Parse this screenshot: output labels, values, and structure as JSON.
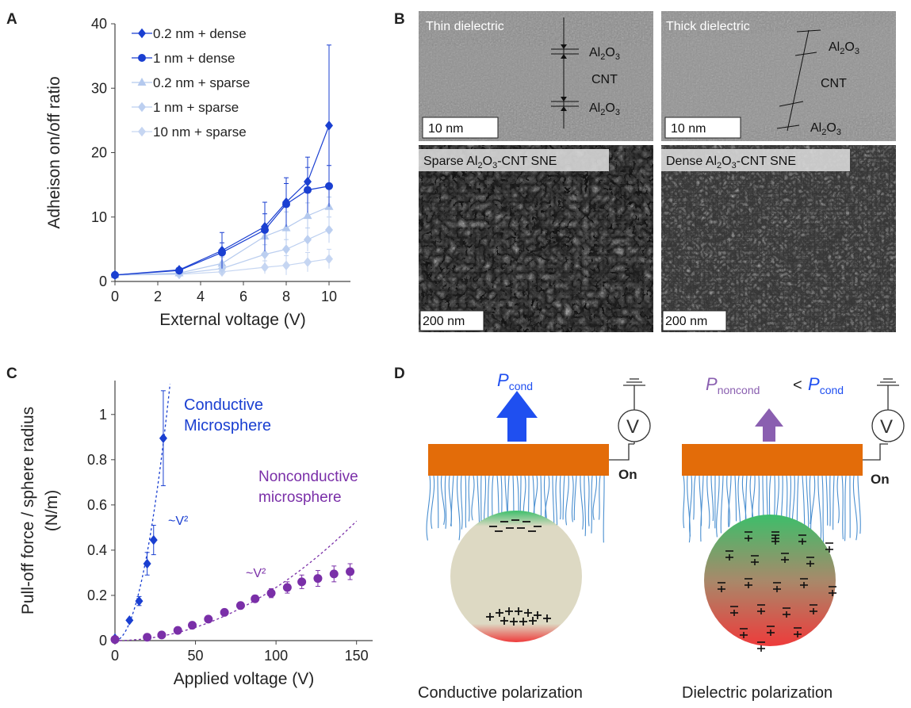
{
  "panels": {
    "A": "A",
    "B": "B",
    "C": "C",
    "D": "D"
  },
  "chart_data": [
    {
      "type": "line",
      "panel": "A",
      "xlabel": "External voltage (V)",
      "ylabel": "Adheison on/off ratio",
      "xlim": [
        0,
        11
      ],
      "ylim": [
        0,
        40
      ],
      "xticks": [
        0,
        2,
        4,
        6,
        8,
        10
      ],
      "yticks": [
        0,
        10,
        20,
        30,
        40
      ],
      "legend": "top-left",
      "series": [
        {
          "name": "1 nm + dense",
          "marker": "circle",
          "color": "#1A3FD1",
          "x": [
            0,
            3,
            5,
            7,
            8,
            9,
            10
          ],
          "y": [
            1,
            1.7,
            4.5,
            8,
            12,
            14.2,
            14.8
          ],
          "err": [
            0.2,
            0.3,
            1.5,
            2.5,
            3.2,
            3.5,
            3.2
          ]
        },
        {
          "name": "0.2 nm + sparse",
          "marker": "triangle",
          "color": "#B4C9EE",
          "x": [
            0,
            3,
            5,
            7,
            8,
            9,
            10
          ],
          "y": [
            1,
            1.3,
            2.8,
            7,
            8.3,
            10.2,
            11.6
          ],
          "err": [
            0.2,
            0.3,
            1,
            1.5,
            2.5,
            2,
            1.5
          ]
        },
        {
          "name": "1 nm + sparse",
          "marker": "diamond",
          "color": "#BCCFF0",
          "x": [
            0,
            3,
            5,
            7,
            8,
            9,
            10
          ],
          "y": [
            1,
            1.2,
            2,
            4.2,
            5,
            6.5,
            8
          ],
          "err": [
            0.2,
            0.3,
            1,
            1.5,
            1.5,
            1.8,
            2
          ]
        },
        {
          "name": "10 nm + sparse",
          "marker": "diamond",
          "color": "#C6D6F2",
          "x": [
            0,
            3,
            5,
            7,
            8,
            9,
            10
          ],
          "y": [
            1,
            1.1,
            1.5,
            2.2,
            2.5,
            3,
            3.5
          ],
          "err": [
            0.2,
            0.2,
            0.5,
            1,
            1.5,
            1.5,
            1.5
          ]
        },
        {
          "name": "0.2 nm + dense",
          "marker": "diamond",
          "color": "#1A3FD1",
          "x": [
            0,
            3,
            5,
            7,
            8,
            9,
            10
          ],
          "y": [
            1,
            1.8,
            4.8,
            8.5,
            12.3,
            15.5,
            24.2
          ],
          "err": [
            0.2,
            0.3,
            2.8,
            3.8,
            3.8,
            3.8,
            12.5
          ]
        }
      ]
    },
    {
      "type": "scatter",
      "panel": "C",
      "xlabel": "Applied voltage (V)",
      "ylabel_lines": [
        "Pull-off force / sphere radius",
        "(N/m)"
      ],
      "xlim": [
        0,
        160
      ],
      "ylim": [
        0,
        1.15
      ],
      "xticks": [
        0,
        50,
        100,
        150
      ],
      "yticks": [
        0,
        0.2,
        0.4,
        0.6,
        0.8,
        1
      ],
      "ytick_labels": [
        "0",
        "0.2",
        "0.4",
        "0.6",
        "0.8",
        "1"
      ],
      "series": [
        {
          "name": "Conductive Microsphere",
          "marker": "diamond",
          "color": "#1A3FD1",
          "x": [
            0,
            9,
            15,
            20,
            24,
            30
          ],
          "y": [
            0.01,
            0.09,
            0.175,
            0.34,
            0.445,
            0.895
          ],
          "err": [
            0,
            0,
            0.02,
            0.05,
            0.065,
            0.21
          ],
          "fit": {
            "label": "~V²",
            "coef": 0.00097
          }
        },
        {
          "name": "Nonconductive microsphere",
          "marker": "circle",
          "color": "#7A2FA8",
          "x": [
            0,
            20,
            29,
            39,
            48,
            58,
            68,
            78,
            87,
            97,
            107,
            116,
            126,
            136,
            146
          ],
          "y": [
            0.005,
            0.015,
            0.025,
            0.045,
            0.068,
            0.095,
            0.125,
            0.155,
            0.185,
            0.21,
            0.235,
            0.26,
            0.275,
            0.295,
            0.305
          ],
          "err": [
            0,
            0,
            0,
            0,
            0,
            0,
            0,
            0.01,
            0.015,
            0.02,
            0.025,
            0.03,
            0.035,
            0.035,
            0.035
          ],
          "fit": {
            "label": "~V²",
            "coef": 2.35e-05
          }
        }
      ],
      "annotations": [
        {
          "text": "Conductive",
          "color": "#1A3FD1"
        },
        {
          "text": "Microsphere",
          "color": "#1A3FD1"
        },
        {
          "text": "Nonconductive",
          "color": "#7A2FA8"
        },
        {
          "text": "microsphere",
          "color": "#7A2FA8"
        },
        {
          "text": "~V²",
          "color": "#1A3FD1"
        },
        {
          "text": "~V²",
          "color": "#7A2FA8"
        }
      ]
    }
  ],
  "panelB": {
    "thin_title": "Thin dielectric",
    "thick_title": "Thick dielectric",
    "al": "Al",
    "sub2": "2",
    "o": "O",
    "sub3": "3",
    "cnt": "CNT",
    "scale_10nm": "10 nm",
    "scale_200nm": "200 nm",
    "sparse_pre": "Sparse Al",
    "dense_pre": "Dense Al",
    "sne_post": "-CNT SNE"
  },
  "panelD": {
    "p": "P",
    "cond": "cond",
    "noncond": "noncond",
    "lt": "<",
    "v": "V",
    "on": "On",
    "caption_left": "Conductive polarization",
    "caption_right": "Dielectric polarization",
    "colors": {
      "electrode": "#E36C09",
      "fibers": "#4A8FD0",
      "arrow_cond": "#1F4FF0",
      "arrow_noncond": "#8A5FB0",
      "sphere": "#DDD9C3",
      "plus_region": "#EE3B3B",
      "minus_region": "#3DBE6A"
    }
  }
}
